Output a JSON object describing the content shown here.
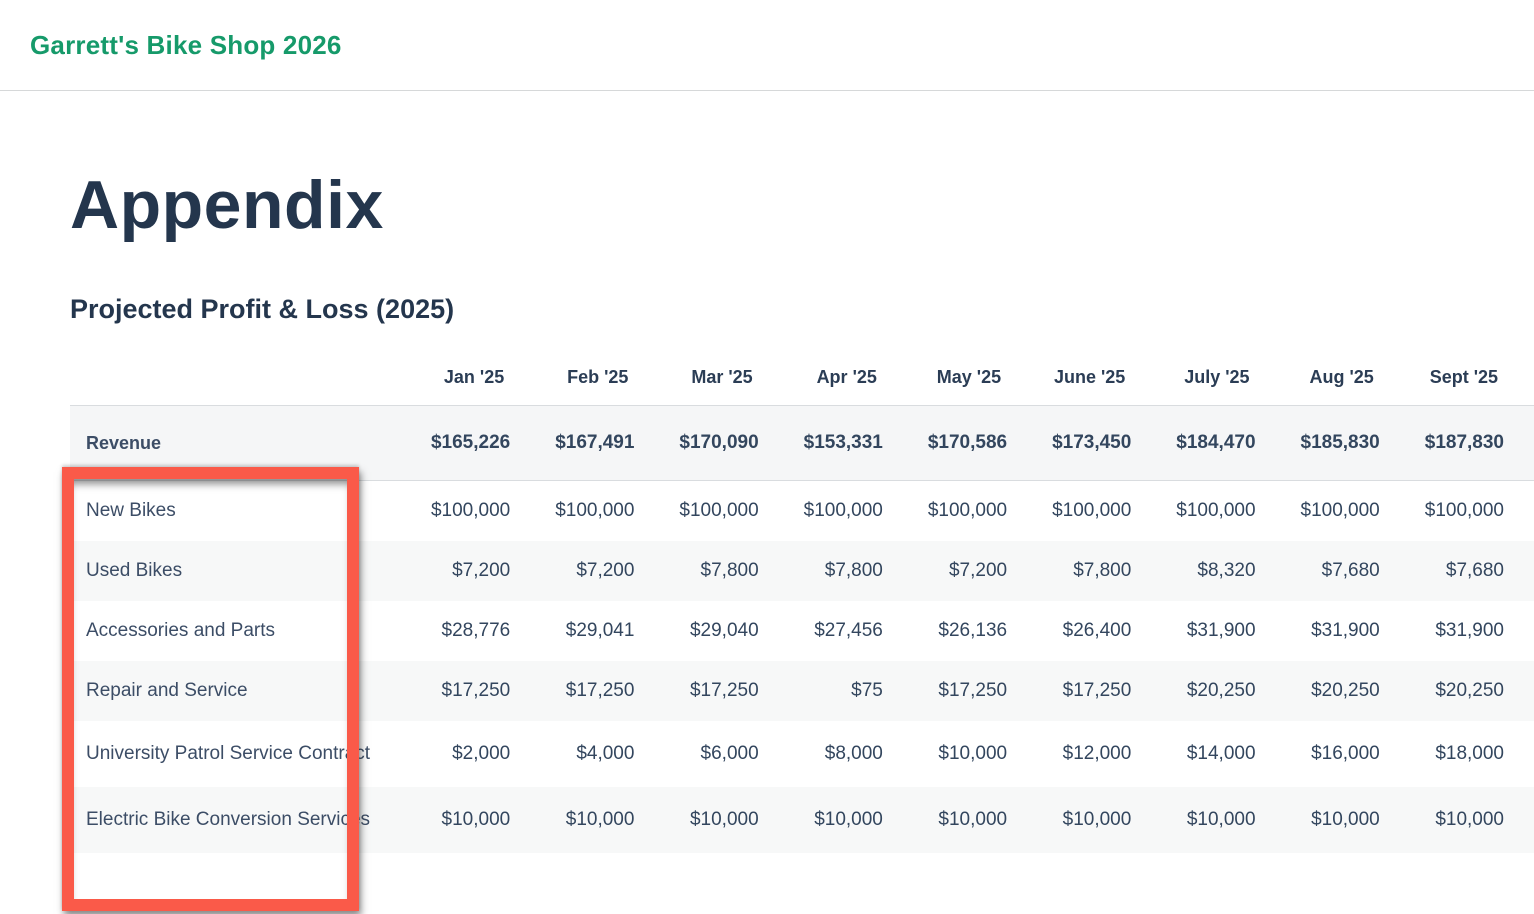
{
  "topbar": {
    "brand": "Garrett's Bike Shop 2026"
  },
  "page": {
    "title": "Appendix",
    "subtitle": "Projected Profit & Loss (2025)"
  },
  "table": {
    "columns": [
      "Jan '25",
      "Feb '25",
      "Mar '25",
      "Apr '25",
      "May '25",
      "June '25",
      "July '25",
      "Aug '25",
      "Sept '25"
    ],
    "revenue_row": {
      "label": "Revenue",
      "values": [
        "$165,226",
        "$167,491",
        "$170,090",
        "$153,331",
        "$170,586",
        "$173,450",
        "$184,470",
        "$185,830",
        "$187,830"
      ]
    },
    "rows": [
      {
        "label": "New Bikes",
        "values": [
          "$100,000",
          "$100,000",
          "$100,000",
          "$100,000",
          "$100,000",
          "$100,000",
          "$100,000",
          "$100,000",
          "$100,000"
        ]
      },
      {
        "label": "Used Bikes",
        "values": [
          "$7,200",
          "$7,200",
          "$7,800",
          "$7,800",
          "$7,200",
          "$7,800",
          "$8,320",
          "$7,680",
          "$7,680"
        ]
      },
      {
        "label": "Accessories and Parts",
        "values": [
          "$28,776",
          "$29,041",
          "$29,040",
          "$27,456",
          "$26,136",
          "$26,400",
          "$31,900",
          "$31,900",
          "$31,900"
        ]
      },
      {
        "label": "Repair and Service",
        "values": [
          "$17,250",
          "$17,250",
          "$17,250",
          "$75",
          "$17,250",
          "$17,250",
          "$20,250",
          "$20,250",
          "$20,250"
        ]
      },
      {
        "label": "University Patrol Service Contract",
        "values": [
          "$2,000",
          "$4,000",
          "$6,000",
          "$8,000",
          "$10,000",
          "$12,000",
          "$14,000",
          "$16,000",
          "$18,000"
        ]
      },
      {
        "label": "Electric Bike Conversion Services",
        "values": [
          "$10,000",
          "$10,000",
          "$10,000",
          "$10,000",
          "$10,000",
          "$10,000",
          "$10,000",
          "$10,000",
          "$10,000"
        ]
      }
    ]
  },
  "annotation": {
    "type": "highlight-rectangle",
    "color": "#fa5a49"
  },
  "colors": {
    "brand_green": "#169a6a",
    "heading_navy": "#24364d",
    "table_text": "#33465e",
    "stripe_gray": "#f7f8f8",
    "revenue_bg": "#f5f6f7",
    "divider_gray": "#d9dcdf",
    "highlight_red": "#fa5a49"
  }
}
